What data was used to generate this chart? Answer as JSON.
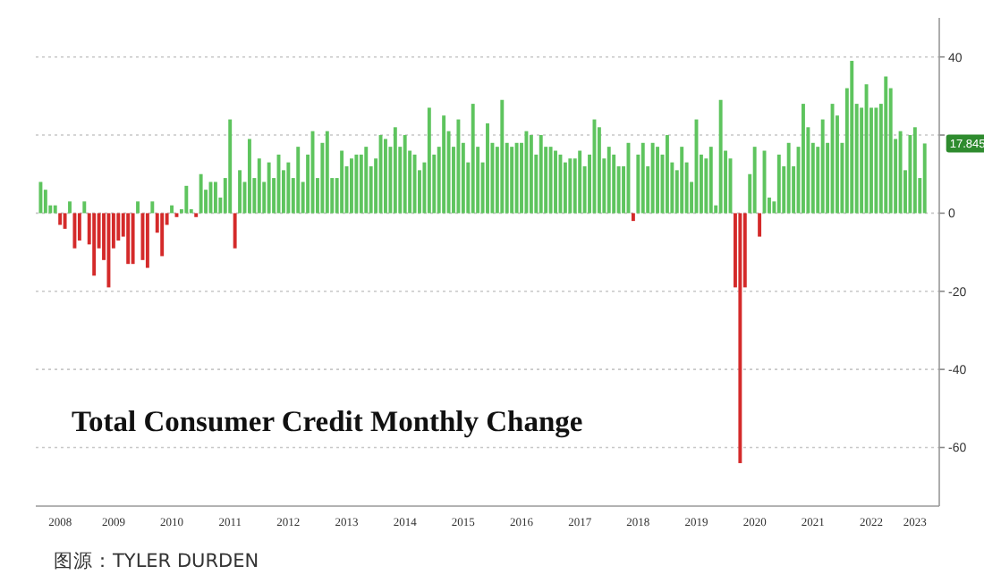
{
  "chart_data": {
    "type": "bar",
    "title": "Total Consumer Credit Monthly Change",
    "x": [
      "2008-04",
      "2008-05",
      "2008-06",
      "2008-07",
      "2008-08",
      "2008-09",
      "2008-10",
      "2008-11",
      "2008-12",
      "2009-01",
      "2009-02",
      "2009-03",
      "2009-04",
      "2009-05",
      "2009-06",
      "2009-07",
      "2009-08",
      "2009-09",
      "2009-10",
      "2009-11",
      "2009-12",
      "2010-01",
      "2010-02",
      "2010-03",
      "2010-04",
      "2010-05",
      "2010-06",
      "2010-07",
      "2010-08",
      "2010-09",
      "2010-10",
      "2010-11",
      "2010-12",
      "2011-01",
      "2011-02",
      "2011-03",
      "2011-04",
      "2011-05",
      "2011-06",
      "2011-07",
      "2011-08",
      "2011-09",
      "2011-10",
      "2011-11",
      "2011-12",
      "2012-01",
      "2012-02",
      "2012-03",
      "2012-04",
      "2012-05",
      "2012-06",
      "2012-07",
      "2012-08",
      "2012-09",
      "2012-10",
      "2012-11",
      "2012-12",
      "2013-01",
      "2013-02",
      "2013-03",
      "2013-04",
      "2013-05",
      "2013-06",
      "2013-07",
      "2013-08",
      "2013-09",
      "2013-10",
      "2013-11",
      "2013-12",
      "2014-01",
      "2014-02",
      "2014-03",
      "2014-04",
      "2014-05",
      "2014-06",
      "2014-07",
      "2014-08",
      "2014-09",
      "2014-10",
      "2014-11",
      "2014-12",
      "2015-01",
      "2015-02",
      "2015-03",
      "2015-04",
      "2015-05",
      "2015-06",
      "2015-07",
      "2015-08",
      "2015-09",
      "2015-10",
      "2015-11",
      "2015-12",
      "2016-01",
      "2016-02",
      "2016-03",
      "2016-04",
      "2016-05",
      "2016-06",
      "2016-07",
      "2016-08",
      "2016-09",
      "2016-10",
      "2016-11",
      "2016-12",
      "2017-01",
      "2017-02",
      "2017-03",
      "2017-04",
      "2017-05",
      "2017-06",
      "2017-07",
      "2017-08",
      "2017-09",
      "2017-10",
      "2017-11",
      "2017-12",
      "2018-01",
      "2018-02",
      "2018-03",
      "2018-04",
      "2018-05",
      "2018-06",
      "2018-07",
      "2018-08",
      "2018-09",
      "2018-10",
      "2018-11",
      "2018-12",
      "2019-01",
      "2019-02",
      "2019-03",
      "2019-04",
      "2019-05",
      "2019-06",
      "2019-07",
      "2019-08",
      "2019-09",
      "2019-10",
      "2019-11",
      "2019-12",
      "2020-01",
      "2020-02",
      "2020-03",
      "2020-04",
      "2020-05",
      "2020-06",
      "2020-07",
      "2020-08",
      "2020-09",
      "2020-10",
      "2020-11",
      "2020-12",
      "2021-01",
      "2021-02",
      "2021-03",
      "2021-04",
      "2021-05",
      "2021-06",
      "2021-07",
      "2021-08",
      "2021-09",
      "2021-10",
      "2021-11",
      "2021-12",
      "2022-01",
      "2022-02",
      "2022-03",
      "2022-04",
      "2022-05",
      "2022-06",
      "2022-07",
      "2022-08",
      "2022-09",
      "2022-10",
      "2022-11",
      "2022-12",
      "2023-01",
      "2023-02",
      "2023-03",
      "2023-04",
      "2023-05",
      "2023-06"
    ],
    "values": [
      8,
      6,
      2,
      2,
      -3,
      -4,
      3,
      -9,
      -7,
      3,
      -8,
      -16,
      -9,
      -12,
      -19,
      -9,
      -7,
      -6,
      -13,
      -13,
      3,
      -12,
      -14,
      3,
      -5,
      -11,
      -3,
      2,
      -1,
      1,
      7,
      1,
      -1,
      10,
      6,
      8,
      8,
      4,
      9,
      24,
      -9,
      11,
      8,
      19,
      9,
      14,
      8,
      13,
      9,
      15,
      11,
      13,
      9,
      17,
      8,
      15,
      21,
      9,
      18,
      21,
      9,
      9,
      16,
      12,
      14,
      15,
      15,
      17,
      12,
      14,
      20,
      19,
      17,
      22,
      17,
      20,
      16,
      15,
      11,
      13,
      27,
      15,
      17,
      25,
      21,
      17,
      24,
      18,
      13,
      28,
      17,
      13,
      23,
      18,
      17,
      29,
      18,
      17,
      18,
      18,
      21,
      20,
      15,
      20,
      17,
      17,
      16,
      15,
      13,
      14,
      14,
      16,
      12,
      15,
      24,
      22,
      14,
      17,
      15,
      12,
      12,
      18,
      -2,
      15,
      18,
      12,
      18,
      17,
      15,
      20,
      13,
      11,
      17,
      13,
      8,
      24,
      15,
      14,
      17,
      2,
      29,
      16,
      14,
      -19,
      -64,
      -19,
      10,
      17,
      -6,
      16,
      4,
      3,
      15,
      12,
      18,
      12,
      17,
      28,
      22,
      18,
      17,
      24,
      18,
      28,
      25,
      18,
      32,
      39,
      28,
      27,
      33,
      27,
      27,
      28,
      35,
      32,
      19,
      21,
      11,
      20,
      22,
      9,
      17.845
    ],
    "colors": [
      "#5ec45e",
      "#5ec45e",
      "#5ec45e",
      "#5ec45e",
      "#d42a2a",
      "#d42a2a",
      "#5ec45e",
      "#d42a2a",
      "#d42a2a",
      "#5ec45e",
      "#d42a2a",
      "#d42a2a",
      "#d42a2a",
      "#d42a2a",
      "#d42a2a",
      "#d42a2a",
      "#d42a2a",
      "#d42a2a",
      "#d42a2a",
      "#d42a2a",
      "#5ec45e",
      "#d42a2a",
      "#d42a2a",
      "#5ec45e",
      "#d42a2a",
      "#d42a2a",
      "#d42a2a",
      "#5ec45e",
      "#d42a2a",
      "#5ec45e",
      "#5ec45e",
      "#5ec45e",
      "#d42a2a",
      "#5ec45e",
      "#5ec45e",
      "#5ec45e",
      "#5ec45e",
      "#5ec45e",
      "#5ec45e",
      "#5ec45e",
      "#d42a2a",
      "#5ec45e",
      "#5ec45e",
      "#5ec45e",
      "#5ec45e",
      "#5ec45e",
      "#5ec45e",
      "#5ec45e",
      "#5ec45e",
      "#5ec45e",
      "#5ec45e",
      "#5ec45e",
      "#5ec45e",
      "#5ec45e",
      "#5ec45e",
      "#5ec45e",
      "#5ec45e",
      "#5ec45e",
      "#5ec45e",
      "#5ec45e",
      "#5ec45e",
      "#5ec45e",
      "#5ec45e",
      "#5ec45e",
      "#5ec45e",
      "#5ec45e",
      "#5ec45e",
      "#5ec45e",
      "#5ec45e",
      "#5ec45e",
      "#5ec45e",
      "#5ec45e",
      "#5ec45e",
      "#5ec45e",
      "#5ec45e",
      "#5ec45e",
      "#5ec45e",
      "#5ec45e",
      "#5ec45e",
      "#5ec45e",
      "#5ec45e",
      "#5ec45e",
      "#5ec45e",
      "#5ec45e",
      "#5ec45e",
      "#5ec45e",
      "#5ec45e",
      "#5ec45e",
      "#5ec45e",
      "#5ec45e",
      "#5ec45e",
      "#5ec45e",
      "#5ec45e",
      "#5ec45e",
      "#5ec45e",
      "#5ec45e",
      "#5ec45e",
      "#5ec45e",
      "#5ec45e",
      "#5ec45e",
      "#5ec45e",
      "#5ec45e",
      "#5ec45e",
      "#5ec45e",
      "#5ec45e",
      "#5ec45e",
      "#5ec45e",
      "#5ec45e",
      "#5ec45e",
      "#5ec45e",
      "#5ec45e",
      "#5ec45e",
      "#5ec45e",
      "#5ec45e",
      "#5ec45e",
      "#5ec45e",
      "#5ec45e",
      "#5ec45e",
      "#5ec45e",
      "#5ec45e",
      "#5ec45e",
      "#5ec45e",
      "#d42a2a",
      "#5ec45e",
      "#5ec45e",
      "#5ec45e",
      "#5ec45e",
      "#5ec45e",
      "#5ec45e",
      "#5ec45e",
      "#5ec45e",
      "#5ec45e",
      "#5ec45e",
      "#5ec45e",
      "#5ec45e",
      "#5ec45e",
      "#5ec45e",
      "#5ec45e",
      "#5ec45e",
      "#5ec45e",
      "#5ec45e",
      "#5ec45e",
      "#5ec45e",
      "#d42a2a",
      "#d42a2a",
      "#d42a2a",
      "#5ec45e",
      "#5ec45e",
      "#d42a2a",
      "#5ec45e",
      "#5ec45e",
      "#5ec45e",
      "#5ec45e",
      "#5ec45e",
      "#5ec45e",
      "#5ec45e",
      "#5ec45e",
      "#5ec45e",
      "#5ec45e",
      "#5ec45e",
      "#5ec45e",
      "#5ec45e",
      "#5ec45e",
      "#5ec45e",
      "#5ec45e",
      "#5ec45e",
      "#5ec45e",
      "#5ec45e",
      "#5ec45e",
      "#5ec45e",
      "#5ec45e",
      "#5ec45e",
      "#5ec45e",
      "#5ec45e",
      "#5ec45e",
      "#5ec45e",
      "#5ec45e",
      "#5ec45e",
      "#5ec45e",
      "#5ec45e",
      "#5ec45e",
      "#5ec45e",
      "#5ec45e"
    ],
    "xlim": [
      "2008-03",
      "2023-09"
    ],
    "xticks": [
      {
        "value": "2008-08",
        "label": "2008"
      },
      {
        "value": "2009-07",
        "label": "2009"
      },
      {
        "value": "2010-07",
        "label": "2010"
      },
      {
        "value": "2011-07",
        "label": "2011"
      },
      {
        "value": "2012-07",
        "label": "2012"
      },
      {
        "value": "2013-07",
        "label": "2013"
      },
      {
        "value": "2014-07",
        "label": "2014"
      },
      {
        "value": "2015-07",
        "label": "2015"
      },
      {
        "value": "2016-07",
        "label": "2016"
      },
      {
        "value": "2017-07",
        "label": "2017"
      },
      {
        "value": "2018-07",
        "label": "2018"
      },
      {
        "value": "2019-07",
        "label": "2019"
      },
      {
        "value": "2020-07",
        "label": "2020"
      },
      {
        "value": "2021-07",
        "label": "2021"
      },
      {
        "value": "2022-07",
        "label": "2022"
      },
      {
        "value": "2023-04",
        "label": "2023"
      }
    ],
    "ylim": [
      -75,
      50
    ],
    "yticks": [
      -60,
      -40,
      -20,
      0,
      {
        "value": 20,
        "label": null
      },
      40
    ],
    "grid": "y",
    "annotations": [
      {
        "text": "17.845",
        "x": "2023-06",
        "y": 17.845
      },
      "图源：TYLER DURDEN"
    ]
  }
}
